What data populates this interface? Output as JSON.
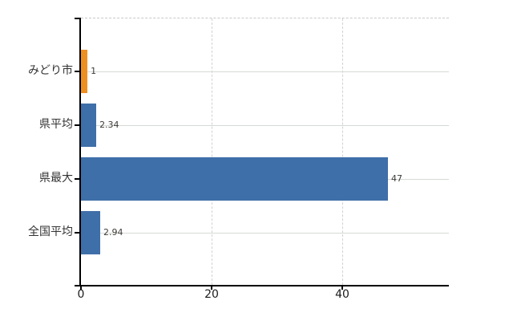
{
  "chart_data": {
    "type": "bar",
    "orientation": "horizontal",
    "title": "",
    "xlabel": "",
    "ylabel": "",
    "categories": [
      "みどり市",
      "県平均",
      "県最大",
      "全国平均"
    ],
    "values": [
      1,
      2.34,
      47,
      2.94
    ],
    "value_labels": [
      "1",
      "2.34",
      "47",
      "2.94"
    ],
    "bar_colors": [
      "#ee8f22",
      "#3f6fa8",
      "#3f6fa8",
      "#3f6fa8"
    ],
    "highlight_color": "#ee8f22",
    "default_color": "#3f6fa8",
    "x_ticks": [
      0,
      20,
      40
    ],
    "xlim": [
      0,
      56.3
    ],
    "grid": {
      "horizontal_row_lines": "solid",
      "vertical_tick_lines": "dashed",
      "top_border": "dashed"
    },
    "legend": "none",
    "background": "#ffffff"
  }
}
